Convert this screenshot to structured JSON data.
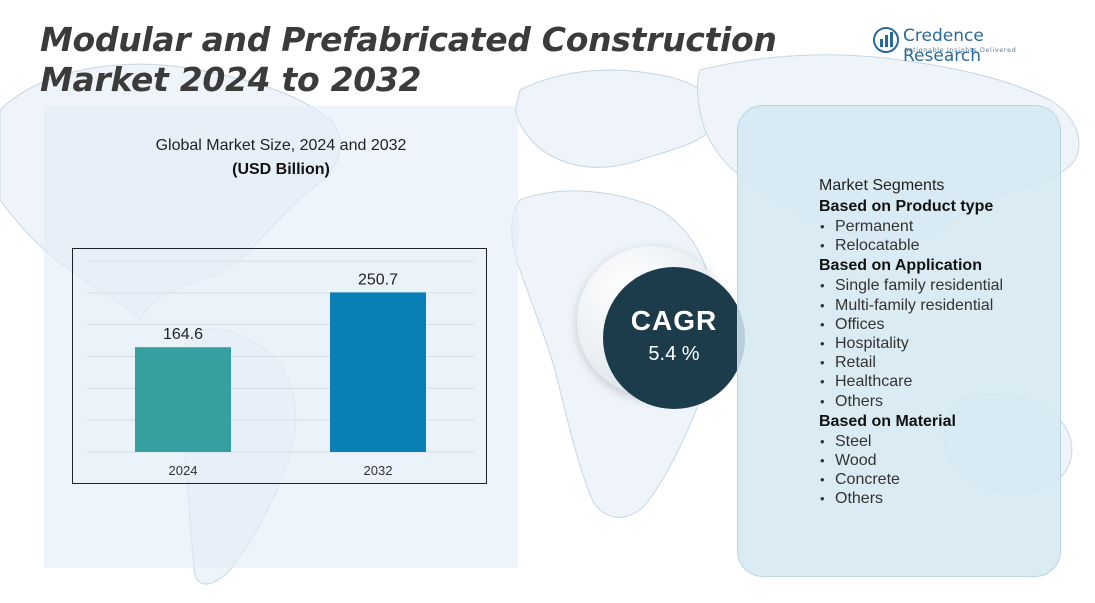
{
  "title": "Modular and Prefabricated Construction Market 2024 to 2032",
  "logo": {
    "name": "Credence Research",
    "tagline": "Actionable Insights Delivered",
    "icon": "bar-chart-logo-icon"
  },
  "chart_header": {
    "subtitle": "Global Market Size, 2024 and 2032",
    "unit": "(USD Billion)"
  },
  "cagr": {
    "label": "CAGR",
    "value": "5.4 %"
  },
  "segments": {
    "heading": "Market Segments",
    "groups": [
      {
        "title": "Based on Product type",
        "items": [
          "Permanent",
          "Relocatable"
        ]
      },
      {
        "title": "Based on Application",
        "items": [
          "Single family residential",
          "Multi-family residential",
          "Offices",
          "Hospitality",
          "Retail",
          "Healthcare",
          "Others"
        ]
      },
      {
        "title": "Based on Material",
        "items": [
          "Steel",
          "Wood",
          "Concrete",
          "Others"
        ]
      }
    ]
  },
  "colors": {
    "bar_2024": "#35a0a0",
    "bar_2032": "#0880b5",
    "cagr_circle": "#1c3c4c",
    "title_text": "#3b3b3b"
  },
  "chart_data": {
    "type": "bar",
    "categories": [
      "2024",
      "2032"
    ],
    "values": [
      164.6,
      250.7
    ],
    "title": "Global Market Size, 2024 and 2032",
    "xlabel": "",
    "ylabel": "",
    "unit": "USD Billion",
    "ylim": [
      0,
      300
    ],
    "grid": true,
    "data_labels": [
      "164.6",
      "250.7"
    ]
  }
}
